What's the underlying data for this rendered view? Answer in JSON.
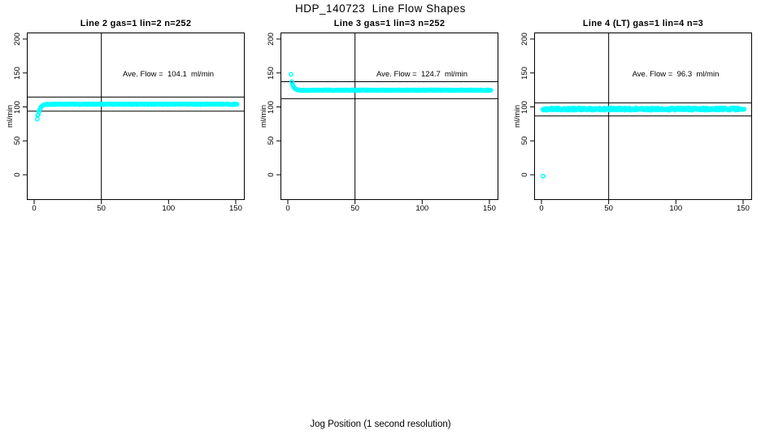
{
  "page": {
    "main_title": "HDP_140723  Line Flow Shapes",
    "x_axis_label": "Jog Position (1 second resolution)"
  },
  "colors": {
    "marker": "#00FFFF",
    "axis": "#000000",
    "background": "#FFFFFF"
  },
  "chart_data": [
    {
      "type": "scatter",
      "title": "Line 2 gas=1 lin=2 n=252",
      "line": 2,
      "gas": 1,
      "lin": 2,
      "n": 252,
      "ave_flow": 104.1,
      "annotation": "Ave. Flow =  104.1  ml/min",
      "ylabel": "ml/min",
      "xlim": [
        -5,
        156
      ],
      "ylim": [
        -36,
        210
      ],
      "x_ticks": [
        0,
        50,
        100,
        150
      ],
      "y_ticks": [
        0,
        50,
        100,
        150,
        200
      ],
      "ref_vline_x": 50,
      "ref_hlines": [
        114.5,
        93.7
      ],
      "outlier_points": [
        [
          2.3,
          82
        ],
        [
          2.7,
          87.5
        ]
      ],
      "points_transient": [
        [
          3.0,
          88.5
        ],
        [
          3.5,
          92.5
        ],
        [
          4.0,
          95.5
        ],
        [
          4.6,
          98.0
        ],
        [
          5.2,
          100.0
        ],
        [
          5.8,
          101.3
        ],
        [
          6.4,
          102.2
        ],
        [
          7.0,
          102.8
        ],
        [
          7.6,
          103.2
        ],
        [
          8.2,
          103.5
        ],
        [
          8.8,
          103.7
        ],
        [
          9.4,
          103.9
        ]
      ],
      "plateau": {
        "x_from": 10,
        "x_to": 151,
        "x_step": 0.6,
        "y": 104.0,
        "jitter": 0.5
      }
    },
    {
      "type": "scatter",
      "title": "Line 3 gas=1 lin=3 n=252",
      "line": 3,
      "gas": 1,
      "lin": 3,
      "n": 252,
      "ave_flow": 124.7,
      "annotation": "Ave. Flow =  124.7  ml/min",
      "ylabel": "ml/min",
      "xlim": [
        -5,
        156
      ],
      "ylim": [
        -36,
        210
      ],
      "x_ticks": [
        0,
        50,
        100,
        150
      ],
      "y_ticks": [
        0,
        50,
        100,
        150,
        200
      ],
      "ref_vline_x": 50,
      "ref_hlines": [
        137.2,
        112.2
      ],
      "outlier_points": [
        [
          2.3,
          148
        ]
      ],
      "points_transient": [
        [
          3.0,
          137.0
        ],
        [
          3.5,
          133.5
        ],
        [
          4.0,
          131.0
        ],
        [
          4.6,
          128.8
        ],
        [
          5.2,
          127.3
        ],
        [
          5.8,
          126.3
        ],
        [
          6.4,
          125.7
        ],
        [
          7.0,
          125.3
        ],
        [
          7.6,
          125.0
        ],
        [
          8.2,
          124.9
        ],
        [
          8.8,
          124.8
        ],
        [
          9.4,
          124.7
        ]
      ],
      "plateau": {
        "x_from": 10,
        "x_to": 151,
        "x_step": 0.6,
        "y": 124.6,
        "jitter": 0.5
      }
    },
    {
      "type": "scatter",
      "title": "Line 4 (LT) gas=1 lin=4 n=3",
      "line": 4,
      "line_note": "LT",
      "gas": 1,
      "lin": 4,
      "n": 3,
      "ave_flow": 96.3,
      "annotation": "Ave. Flow =  96.3  ml/min",
      "ylabel": "ml/min",
      "xlim": [
        -5,
        156
      ],
      "ylim": [
        -36,
        210
      ],
      "x_ticks": [
        0,
        50,
        100,
        150
      ],
      "y_ticks": [
        0,
        50,
        100,
        150,
        200
      ],
      "ref_vline_x": 50,
      "ref_hlines": [
        105.9,
        86.7
      ],
      "outlier_points": [
        [
          1.2,
          -2
        ]
      ],
      "points_transient": [],
      "plateau": {
        "x_from": 1.0,
        "x_to": 151,
        "x_step": 0.35,
        "y": 96.8,
        "jitter": 1.6
      }
    }
  ]
}
